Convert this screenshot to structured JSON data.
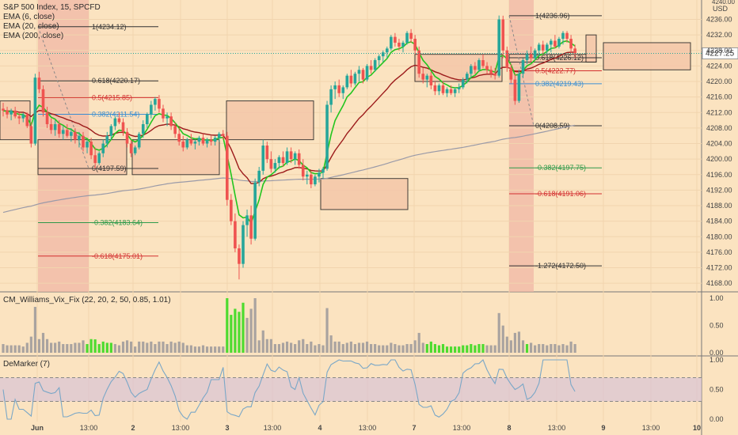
{
  "title": "S&P 500 Index, 15, SPCFD",
  "indicators": [
    "EMA (6, close)",
    "EMA (20, close)",
    "EMA (200, close)"
  ],
  "currency": "USD",
  "colors": {
    "background": "#fbe3c0",
    "up": "#26a69a",
    "down": "#ef5350",
    "ema6": "#22c51e",
    "ema20": "#9c1b1b",
    "ema200": "#9a9aa8",
    "fib_black": "#333333",
    "fib_red": "#d32f2f",
    "fib_green": "#2e9a4a",
    "fib_blue": "#3d8fd1",
    "zone_fill": "#f5c7a9",
    "vix_green": "#4ddb2f",
    "vix_gray": "#a9a3a0",
    "demarker": "#7aa7c7",
    "demarker_band": "#d9c3d6"
  },
  "price_axis": {
    "ticks": [
      4236,
      4232,
      4228,
      4224,
      4220,
      4216,
      4212,
      4208,
      4204,
      4200,
      4196,
      4192,
      4188,
      4184,
      4180,
      4176,
      4172,
      4168
    ],
    "top_label": "4240.00"
  },
  "last_price": "4227.25",
  "x_axis": [
    "Jun",
    "13:00",
    "2",
    "13:00",
    "3",
    "13:00",
    "4",
    "13:00",
    "7",
    "13:00",
    "8",
    "13:00",
    "9",
    "13:00",
    "10"
  ],
  "fib_left": [
    {
      "label": "1(4234.12)",
      "value": 4234.12,
      "color": "fib_black"
    },
    {
      "label": "0.618(4220.17)",
      "value": 4220.17,
      "color": "fib_black"
    },
    {
      "label": "0.5(4215.85)",
      "value": 4215.85,
      "color": "fib_red"
    },
    {
      "label": "0.382(4211.54)",
      "value": 4211.54,
      "color": "fib_blue"
    },
    {
      "label": "0(4197.59)",
      "value": 4197.59,
      "color": "fib_black"
    },
    {
      "label": "-0.382(4183.64)",
      "value": 4183.64,
      "color": "fib_green"
    },
    {
      "label": "-0.618(4175.01)",
      "value": 4175.01,
      "color": "fib_red"
    }
  ],
  "fib_right": [
    {
      "label": "1(4236.96)",
      "value": 4236.96,
      "color": "fib_black"
    },
    {
      "label": "0.618(4226.12)",
      "value": 4226.12,
      "color": "fib_black"
    },
    {
      "label": "0.5(4222.77)",
      "value": 4222.77,
      "color": "fib_red"
    },
    {
      "label": "0.382(4219.43)",
      "value": 4219.43,
      "color": "fib_blue"
    },
    {
      "label": "0(4208.59)",
      "value": 4208.59,
      "color": "fib_black"
    },
    {
      "label": "-0.382(4197.75)",
      "value": 4197.75,
      "color": "fib_green"
    },
    {
      "label": "-0.618(4191.06)",
      "value": 4191.06,
      "color": "fib_red"
    },
    {
      "label": "-1.272(4172.50)",
      "value": 4172.5,
      "color": "fib_black"
    }
  ],
  "vix_panel": {
    "title": "CM_Williams_Vix_Fix (22, 20, 2, 50, 0.85, 1.01)",
    "ticks": [
      "1.00",
      "0.50",
      "0.00"
    ]
  },
  "demarker_panel": {
    "title": "DeMarker (7)",
    "ticks": [
      "1.00",
      "0.50",
      "0.00"
    ]
  },
  "chart_data": {
    "type": "candlestick",
    "interval": "15 minutes",
    "ylim": [
      4166,
      4241
    ],
    "ohlc": [
      [
        4213,
        4214.5,
        4211,
        4212.5
      ],
      [
        4212.5,
        4213.5,
        4210.5,
        4211.5
      ],
      [
        4211.5,
        4213,
        4210,
        4212.5
      ],
      [
        4212.5,
        4213.5,
        4210.5,
        4211
      ],
      [
        4211,
        4212,
        4209,
        4210.5
      ],
      [
        4210.5,
        4212,
        4209.5,
        4211.5
      ],
      [
        4211.5,
        4212,
        4208,
        4208.5
      ],
      [
        4208.5,
        4209.5,
        4203,
        4204
      ],
      [
        4204,
        4222,
        4203.5,
        4221
      ],
      [
        4221,
        4222.5,
        4217,
        4218
      ],
      [
        4218,
        4219,
        4211,
        4212
      ],
      [
        4212,
        4213.5,
        4208,
        4209
      ],
      [
        4209,
        4210.5,
        4206.5,
        4207.5
      ],
      [
        4207.5,
        4210,
        4206,
        4209
      ],
      [
        4209,
        4210,
        4205.5,
        4206.5
      ],
      [
        4206.5,
        4208.5,
        4205,
        4207.5
      ],
      [
        4207.5,
        4209,
        4205.5,
        4206
      ],
      [
        4206,
        4208,
        4204.5,
        4207
      ],
      [
        4207,
        4208,
        4204,
        4205
      ],
      [
        4205,
        4207,
        4203,
        4206
      ],
      [
        4206,
        4207,
        4202,
        4203
      ],
      [
        4203,
        4205,
        4201.5,
        4204.5
      ],
      [
        4204.5,
        4205.5,
        4200,
        4201
      ],
      [
        4201,
        4203,
        4197.6,
        4199
      ],
      [
        4199,
        4202,
        4198.5,
        4201.5
      ],
      [
        4201.5,
        4205,
        4200.5,
        4204
      ],
      [
        4204,
        4207,
        4203,
        4206
      ],
      [
        4206,
        4209,
        4205,
        4208.5
      ],
      [
        4208.5,
        4211,
        4207.5,
        4210.5
      ],
      [
        4210.5,
        4212,
        4209,
        4209.5
      ],
      [
        4209.5,
        4210.5,
        4206,
        4207
      ],
      [
        4207,
        4208,
        4203,
        4204
      ],
      [
        4204,
        4205,
        4200.5,
        4201.5
      ],
      [
        4201.5,
        4203.5,
        4201,
        4203
      ],
      [
        4203,
        4207,
        4202.5,
        4206.5
      ],
      [
        4206.5,
        4210,
        4205.5,
        4209
      ],
      [
        4209,
        4212,
        4208,
        4211.5
      ],
      [
        4211.5,
        4215,
        4210.5,
        4214
      ],
      [
        4214,
        4216,
        4212.5,
        4215.5
      ],
      [
        4215.5,
        4216.5,
        4212,
        4213
      ],
      [
        4213,
        4214,
        4209.5,
        4210.5
      ],
      [
        4210.5,
        4212,
        4208.5,
        4211
      ],
      [
        4211,
        4212,
        4207.5,
        4208.5
      ],
      [
        4208.5,
        4209.5,
        4205.5,
        4206.5
      ],
      [
        4206.5,
        4208,
        4203.5,
        4204.5
      ],
      [
        4204.5,
        4206,
        4202,
        4203
      ],
      [
        4203,
        4205.5,
        4202.5,
        4205
      ],
      [
        4205,
        4206.5,
        4203.5,
        4204
      ],
      [
        4204,
        4205,
        4202.5,
        4204.5
      ],
      [
        4204.5,
        4206,
        4203.5,
        4205.5
      ],
      [
        4205.5,
        4206.5,
        4203.5,
        4204
      ],
      [
        4204,
        4205.5,
        4203,
        4205
      ],
      [
        4205,
        4206,
        4203.5,
        4204.5
      ],
      [
        4204.5,
        4206,
        4203.5,
        4205.5
      ],
      [
        4205.5,
        4207,
        4204.5,
        4206.5
      ],
      [
        4206.5,
        4207.5,
        4205,
        4206
      ],
      [
        4206,
        4207,
        4188,
        4189.5
      ],
      [
        4189.5,
        4191,
        4183,
        4184
      ],
      [
        4184,
        4186,
        4176,
        4177
      ],
      [
        4177,
        4178,
        4169,
        4173
      ],
      [
        4173,
        4184,
        4172,
        4183
      ],
      [
        4183,
        4187,
        4180,
        4185.5
      ],
      [
        4185.5,
        4188,
        4178,
        4179.5
      ],
      [
        4179.5,
        4195,
        4179,
        4194
      ],
      [
        4194,
        4198,
        4193,
        4197
      ],
      [
        4197,
        4205,
        4196,
        4203.5
      ],
      [
        4203.5,
        4204.5,
        4199,
        4200
      ],
      [
        4200,
        4202,
        4196.5,
        4197.5
      ],
      [
        4197.5,
        4200,
        4196.5,
        4199
      ],
      [
        4199,
        4201,
        4197.5,
        4200.5
      ],
      [
        4200.5,
        4202,
        4198,
        4199
      ],
      [
        4199,
        4203,
        4198.5,
        4202
      ],
      [
        4202,
        4203,
        4199,
        4200
      ],
      [
        4200,
        4202,
        4198.5,
        4201.5
      ],
      [
        4201.5,
        4202.5,
        4197.5,
        4198.5
      ],
      [
        4198.5,
        4200,
        4194.5,
        4195.5
      ],
      [
        4195.5,
        4197,
        4193.5,
        4196
      ],
      [
        4196,
        4197,
        4192.5,
        4193.5
      ],
      [
        4193.5,
        4196,
        4193,
        4195.5
      ],
      [
        4195.5,
        4197.5,
        4194,
        4196.5
      ],
      [
        4196.5,
        4198,
        4195,
        4197.5
      ],
      [
        4197.5,
        4215,
        4197,
        4214
      ],
      [
        4214,
        4219,
        4212,
        4218
      ],
      [
        4218,
        4220,
        4215.5,
        4219
      ],
      [
        4219,
        4220.5,
        4216,
        4217
      ],
      [
        4217,
        4219,
        4215.5,
        4218.5
      ],
      [
        4218.5,
        4222,
        4218,
        4221.5
      ],
      [
        4221.5,
        4223,
        4218.5,
        4219.5
      ],
      [
        4219.5,
        4222.5,
        4219,
        4222
      ],
      [
        4222,
        4224,
        4220,
        4223
      ],
      [
        4223,
        4223.5,
        4219.5,
        4220.5
      ],
      [
        4220.5,
        4224.5,
        4220,
        4224
      ],
      [
        4224,
        4225.5,
        4222,
        4223
      ],
      [
        4223,
        4226,
        4222.5,
        4225.5
      ],
      [
        4225.5,
        4227,
        4224,
        4226.5
      ],
      [
        4226.5,
        4228,
        4225,
        4227.5
      ],
      [
        4227.5,
        4229,
        4226,
        4228.5
      ],
      [
        4228.5,
        4232,
        4228,
        4231.5
      ],
      [
        4231.5,
        4232.5,
        4229,
        4230
      ],
      [
        4230,
        4231,
        4228,
        4229
      ],
      [
        4229,
        4230.5,
        4227.5,
        4230
      ],
      [
        4230,
        4233,
        4229.5,
        4232.5
      ],
      [
        4232.5,
        4233.5,
        4230,
        4231
      ],
      [
        4231,
        4232,
        4227,
        4228
      ],
      [
        4228,
        4229,
        4221,
        4222
      ],
      [
        4222,
        4223.5,
        4219.5,
        4220.5
      ],
      [
        4220.5,
        4222,
        4218.5,
        4221.5
      ],
      [
        4221.5,
        4222.5,
        4218,
        4219
      ],
      [
        4219,
        4220,
        4216.5,
        4217.5
      ],
      [
        4217.5,
        4219.5,
        4216.5,
        4219
      ],
      [
        4219,
        4220,
        4216.5,
        4217
      ],
      [
        4217,
        4218.5,
        4216,
        4218
      ],
      [
        4218,
        4219,
        4216.5,
        4217
      ],
      [
        4217,
        4218.5,
        4216,
        4218
      ],
      [
        4218,
        4219.5,
        4217,
        4218.5
      ],
      [
        4218.5,
        4221,
        4218,
        4220.5
      ],
      [
        4220.5,
        4222.5,
        4219.5,
        4222
      ],
      [
        4222,
        4224.5,
        4221,
        4224
      ],
      [
        4224,
        4225,
        4222,
        4223
      ],
      [
        4223,
        4226,
        4222.5,
        4225.5
      ],
      [
        4225.5,
        4227,
        4223.5,
        4224
      ],
      [
        4224,
        4225,
        4222,
        4223
      ],
      [
        4223,
        4224,
        4221,
        4222
      ],
      [
        4222,
        4223.5,
        4220.5,
        4221.5
      ],
      [
        4221.5,
        4237,
        4221,
        4236
      ],
      [
        4236,
        4236.96,
        4226,
        4228
      ],
      [
        4228,
        4229,
        4222.5,
        4223.5
      ],
      [
        4223.5,
        4224.5,
        4219.5,
        4220.5
      ],
      [
        4220.5,
        4222,
        4214,
        4215
      ],
      [
        4215,
        4223,
        4214.5,
        4222
      ],
      [
        4222,
        4226,
        4221,
        4225.5
      ],
      [
        4225.5,
        4228,
        4224.5,
        4227
      ],
      [
        4227,
        4229,
        4225,
        4226
      ],
      [
        4226,
        4228.5,
        4225.5,
        4228
      ],
      [
        4228,
        4230,
        4226.5,
        4229.5
      ],
      [
        4229.5,
        4230.5,
        4227,
        4228
      ],
      [
        4228,
        4230,
        4227,
        4229.5
      ],
      [
        4229.5,
        4231,
        4227.5,
        4230.5
      ],
      [
        4230.5,
        4232,
        4228.5,
        4229
      ],
      [
        4229,
        4231.5,
        4228.5,
        4231
      ],
      [
        4231,
        4233,
        4229.5,
        4232.5
      ],
      [
        4232.5,
        4233,
        4230,
        4231
      ],
      [
        4231,
        4232,
        4227.5,
        4228.5
      ],
      [
        4228.5,
        4229.5,
        4226,
        4227.25
      ]
    ]
  }
}
